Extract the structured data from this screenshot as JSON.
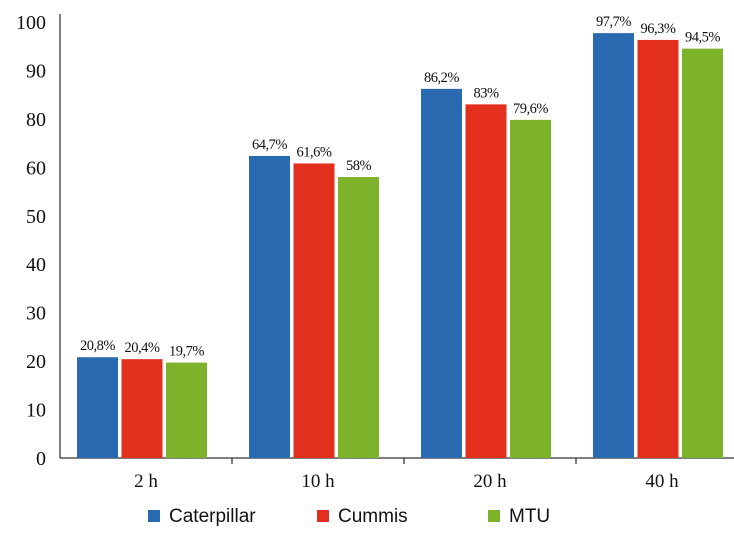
{
  "chart_data": {
    "type": "bar",
    "title": "",
    "xlabel": "",
    "ylabel": "",
    "categories": [
      "2 h",
      "10 h",
      "20 h",
      "40 h"
    ],
    "y_ticks": [
      "0",
      "10",
      "20",
      "30",
      "40",
      "50",
      "60",
      "80",
      "90",
      "100"
    ],
    "y_axis_note": "tick labels as printed; the printed scale skips 70",
    "series": [
      {
        "name": "Caterpillar",
        "color": "#2a6ab0",
        "values": [
          20.8,
          64.7,
          86.2,
          97.7
        ],
        "labels": [
          "20,8%",
          "64,7%",
          "86,2%",
          "97,7%"
        ]
      },
      {
        "name": "Cummis",
        "color": "#e3301e",
        "values": [
          20.4,
          61.6,
          83,
          96.3
        ],
        "labels": [
          "20,4%",
          "61,6%",
          "83%",
          "96,3%"
        ]
      },
      {
        "name": "MTU",
        "color": "#7db32a",
        "values": [
          19.7,
          58,
          79.6,
          94.5
        ],
        "labels": [
          "19,7%",
          "58%",
          "79,6%",
          "94,5%"
        ]
      }
    ],
    "legend": {
      "position": "bottom"
    },
    "grid": false
  }
}
